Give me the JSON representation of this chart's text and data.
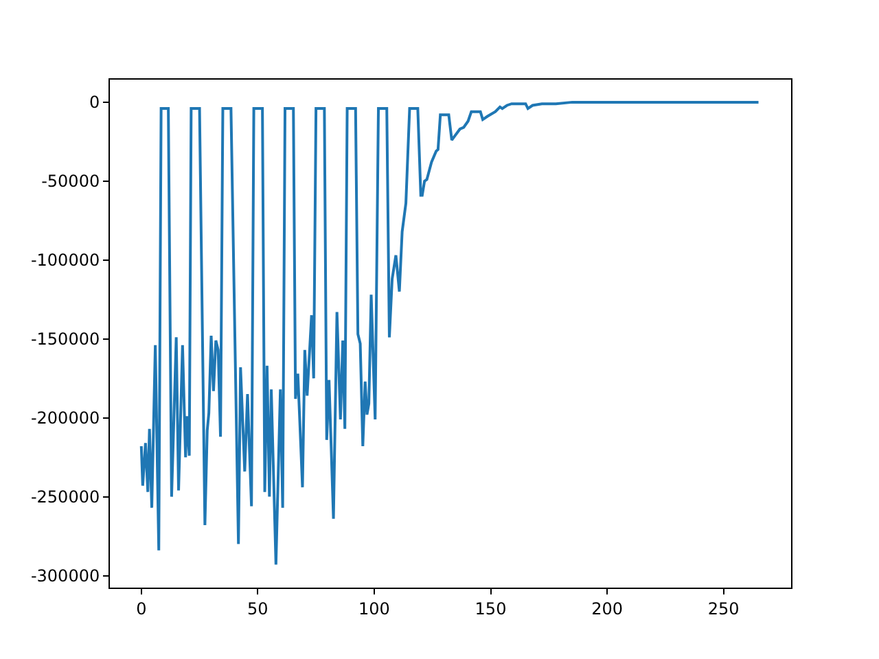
{
  "chart_data": {
    "type": "line",
    "x": [
      0,
      0.6,
      1.8,
      2.8,
      3.5,
      4.5,
      6,
      7.5,
      8.5,
      11.6,
      13,
      15,
      16,
      17.7,
      19,
      19.6,
      20.6,
      21.4,
      25,
      27.3,
      28.3,
      29,
      30,
      31,
      32,
      33,
      34,
      35,
      38.5,
      41.7,
      42.6,
      44.4,
      45.6,
      47.3,
      48.3,
      52,
      53,
      54,
      55,
      55.8,
      57.8,
      59.7,
      60.7,
      61.7,
      65.3,
      66.2,
      67.2,
      69.2,
      70.2,
      71.2,
      73.1,
      74,
      75,
      78.6,
      79.6,
      80.6,
      82.5,
      84,
      85.5,
      86.5,
      87.4,
      88.4,
      92,
      93,
      94,
      95.1,
      96.1,
      96.9,
      97.7,
      98.7,
      100.4,
      101.8,
      105.4,
      106.5,
      107.7,
      109.3,
      110.8,
      112,
      113.6,
      115.2,
      118.7,
      120,
      120.6,
      121.6,
      122.6,
      124.6,
      126.6,
      127.4,
      128.4,
      132,
      133.3,
      134.8,
      136.8,
      138.4,
      140.3,
      141.7,
      145.6,
      146.6,
      148.6,
      152,
      154,
      155,
      157,
      159,
      165,
      166,
      168,
      172,
      178,
      185,
      265
    ],
    "series": [
      {
        "color": "#1f77b4",
        "values": [
          -218000,
          -243000,
          -216000,
          -247000,
          -207000,
          -257000,
          -154000,
          -284000,
          -4000,
          -4000,
          -250000,
          -149000,
          -246000,
          -154000,
          -225000,
          -199000,
          -224000,
          -4000,
          -4000,
          -268000,
          -208000,
          -197000,
          -148000,
          -183000,
          -151000,
          -157000,
          -212000,
          -4000,
          -4000,
          -280000,
          -168000,
          -234000,
          -185000,
          -256000,
          -4000,
          -4000,
          -247000,
          -167000,
          -250000,
          -182000,
          -293000,
          -182000,
          -257000,
          -4000,
          -4000,
          -188000,
          -172000,
          -244000,
          -157000,
          -186000,
          -135000,
          -175000,
          -4000,
          -4000,
          -214000,
          -176000,
          -264000,
          -133000,
          -201000,
          -151000,
          -207000,
          -4000,
          -4000,
          -147000,
          -153000,
          -218000,
          -177000,
          -198000,
          -191000,
          -122000,
          -201000,
          -4000,
          -4000,
          -149000,
          -112000,
          -97000,
          -120000,
          -82000,
          -64000,
          -4000,
          -4000,
          -59000,
          -59000,
          -50000,
          -49000,
          -38000,
          -31000,
          -30000,
          -8000,
          -8000,
          -24000,
          -21000,
          -17000,
          -16000,
          -12000,
          -6000,
          -6000,
          -11000,
          -9000,
          -6000,
          -3000,
          -4000,
          -2000,
          -1000,
          -1000,
          -4000,
          -2000,
          -1000,
          -1000,
          0,
          0
        ]
      }
    ],
    "xlim": [
      -13.5,
      279
    ],
    "ylim": [
      -307600,
      14300
    ],
    "xticks": [
      0,
      50,
      100,
      150,
      200,
      250
    ],
    "yticks": [
      -300000,
      -250000,
      -200000,
      -150000,
      -100000,
      -50000,
      0
    ],
    "marker": "none",
    "line_style": "solid"
  }
}
